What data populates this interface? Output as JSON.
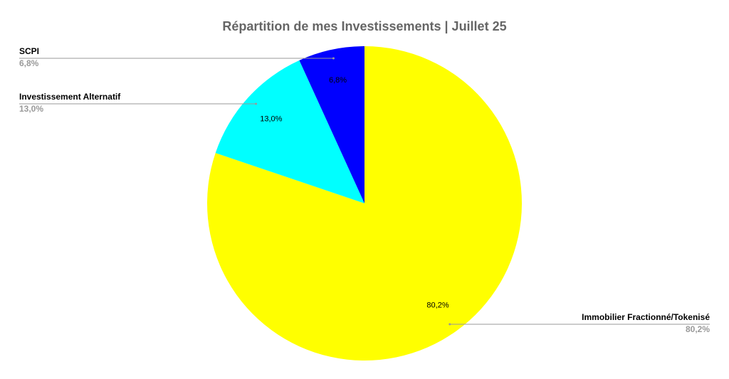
{
  "chart_data": {
    "type": "pie",
    "title": "Répartition de mes Investissements | Juillet 25",
    "categories": [
      "Immobilier Fractionné/Tokenisé",
      "Investissement Alternatif",
      "SCPI"
    ],
    "values": [
      80.2,
      13.0,
      6.8
    ],
    "value_labels": [
      "80,2%",
      "13,0%",
      "6,8%"
    ],
    "colors": [
      "#ffff00",
      "#00ffff",
      "#0000ff"
    ]
  }
}
